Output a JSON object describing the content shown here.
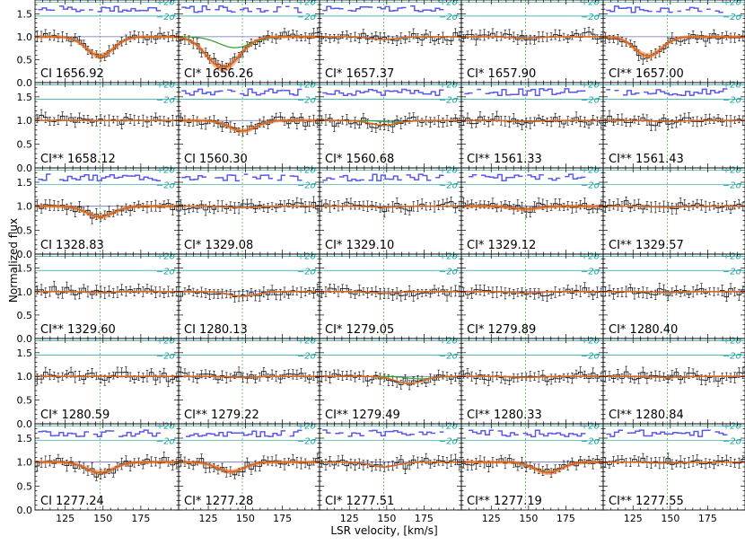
{
  "chart_data": {
    "type": "line",
    "grid_layout": {
      "rows": 6,
      "cols": 5
    },
    "xlabel": "LSR velocity, [km/s]",
    "ylabel": "Normalized flux",
    "xlim": [
      105,
      200
    ],
    "ylim": [
      0.0,
      1.8
    ],
    "x_ticks": [
      125,
      150,
      175
    ],
    "y_ticks": [
      0.0,
      0.5,
      1.0,
      1.5
    ],
    "y_tick_labels": [
      "0.0",
      "0.5",
      "1.0",
      "1.5"
    ],
    "reference_velocity": 148,
    "sigma_labels": {
      "upper": "+2σ",
      "lower": "−2σ"
    },
    "residual_band": {
      "center": 1.6,
      "upper": 1.75,
      "lower": 1.45
    },
    "colors": {
      "data": "#000000",
      "fit": "#d9661c",
      "component": "#2ca02c",
      "residual": "#5a5ae8",
      "sigma": "#17a3a3",
      "vline": "#5fae5f",
      "band": "#d9661c"
    },
    "panels": [
      {
        "label": "CI 1656.92",
        "depth": 0.42,
        "center": 148,
        "width": 9,
        "band": true,
        "residual": true
      },
      {
        "label": "CI* 1656.26",
        "depth": 0.68,
        "center": 135,
        "width": 11,
        "band": true,
        "residual": true,
        "green": true
      },
      {
        "label": "CI* 1657.37",
        "depth": 0.06,
        "center": 148,
        "width": 9,
        "band": false,
        "residual": true
      },
      {
        "label": "CI* 1657.90",
        "depth": 0.03,
        "center": 148,
        "width": 9,
        "band": false,
        "residual": false
      },
      {
        "label": "CI** 1657.00",
        "depth": 0.42,
        "center": 135,
        "width": 9,
        "band": true,
        "residual": true
      },
      {
        "label": "CI** 1658.12",
        "depth": 0.0,
        "center": 148,
        "width": 9,
        "band": false,
        "residual": false
      },
      {
        "label": "CI 1560.30",
        "depth": 0.22,
        "center": 148,
        "width": 9,
        "band": true,
        "residual": true
      },
      {
        "label": "CI* 1560.68",
        "depth": 0.1,
        "center": 148,
        "width": 9,
        "band": false,
        "residual": true,
        "green": true
      },
      {
        "label": "CI** 1561.33",
        "depth": 0.02,
        "center": 148,
        "width": 9,
        "band": false,
        "residual": true
      },
      {
        "label": "CI** 1561.43",
        "depth": 0.02,
        "center": 148,
        "width": 9,
        "band": false,
        "residual": true
      },
      {
        "label": "CI 1328.83",
        "depth": 0.22,
        "center": 148,
        "width": 9,
        "band": true,
        "residual": true
      },
      {
        "label": "CI* 1329.08",
        "depth": 0.03,
        "center": 148,
        "width": 9,
        "band": false,
        "residual": true
      },
      {
        "label": "CI* 1329.10",
        "depth": 0.02,
        "center": 148,
        "width": 9,
        "band": false,
        "residual": true
      },
      {
        "label": "CI* 1329.12",
        "depth": 0.06,
        "center": 148,
        "width": 9,
        "band": true,
        "residual": true
      },
      {
        "label": "CI** 1329.57",
        "depth": 0.02,
        "center": 148,
        "width": 9,
        "band": false,
        "residual": false
      },
      {
        "label": "CI** 1329.60",
        "depth": 0.02,
        "center": 148,
        "width": 9,
        "band": false,
        "residual": false
      },
      {
        "label": "CI 1280.13",
        "depth": 0.1,
        "center": 148,
        "width": 9,
        "band": false,
        "residual": false
      },
      {
        "label": "CI* 1279.05",
        "depth": 0.03,
        "center": 148,
        "width": 9,
        "band": false,
        "residual": false
      },
      {
        "label": "CI* 1279.89",
        "depth": 0.03,
        "center": 148,
        "width": 9,
        "band": false,
        "residual": false
      },
      {
        "label": "CI* 1280.40",
        "depth": 0.02,
        "center": 148,
        "width": 9,
        "band": false,
        "residual": false
      },
      {
        "label": "CI* 1280.59",
        "depth": 0.0,
        "center": 148,
        "width": 9,
        "band": false,
        "residual": false
      },
      {
        "label": "CI** 1279.22",
        "depth": 0.02,
        "center": 148,
        "width": 9,
        "band": false,
        "residual": false
      },
      {
        "label": "CI** 1279.49",
        "depth": 0.15,
        "center": 165,
        "width": 9,
        "band": false,
        "residual": false,
        "green": true
      },
      {
        "label": "CI** 1280.33",
        "depth": 0.02,
        "center": 148,
        "width": 9,
        "band": false,
        "residual": false
      },
      {
        "label": "CI** 1280.84",
        "depth": 0.02,
        "center": 148,
        "width": 9,
        "band": false,
        "residual": false
      },
      {
        "label": "CI 1277.24",
        "depth": 0.22,
        "center": 148,
        "width": 9,
        "band": true,
        "residual": true
      },
      {
        "label": "CI* 1277.28",
        "depth": 0.2,
        "center": 140,
        "width": 9,
        "band": true,
        "residual": true
      },
      {
        "label": "CI* 1277.51",
        "depth": 0.1,
        "center": 148,
        "width": 9,
        "band": false,
        "residual": true
      },
      {
        "label": "CI** 1277.19",
        "depth": 0.22,
        "center": 163,
        "width": 9,
        "band": true,
        "residual": true
      },
      {
        "label": "CI** 1277.55",
        "depth": 0.02,
        "center": 148,
        "width": 9,
        "band": false,
        "residual": true
      }
    ]
  }
}
